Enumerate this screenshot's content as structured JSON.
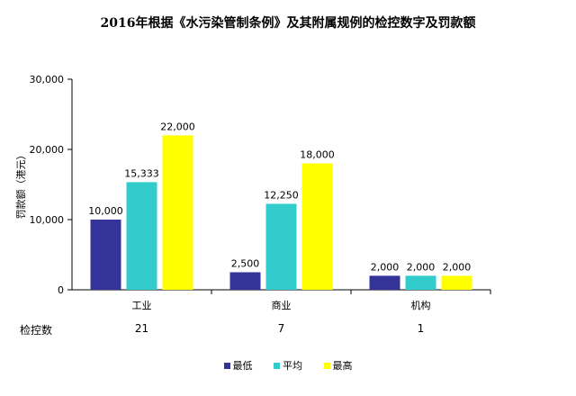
{
  "title": "2016年根据《水污染管制条例》及其附属规例的检控数字及罚款额",
  "chart_data": {
    "type": "bar",
    "categories": [
      "工业",
      "商业",
      "机构"
    ],
    "series": [
      {
        "name": "最低",
        "values": [
          10000,
          2500,
          2000
        ],
        "color": "#333399"
      },
      {
        "name": "平均",
        "values": [
          15333,
          12250,
          2000
        ],
        "color": "#33CCCC"
      },
      {
        "name": "最高",
        "values": [
          22000,
          18000,
          2000
        ],
        "color": "#FFFF00"
      }
    ],
    "value_labels": [
      [
        "10,000",
        "2,500",
        "2,000"
      ],
      [
        "15,333",
        "12,250",
        "2,000"
      ],
      [
        "22,000",
        "18,000",
        "2,000"
      ]
    ],
    "ylabel": "罚款额（港元）",
    "ylim": [
      0,
      30000
    ],
    "yticks": [
      0,
      10000,
      20000,
      30000
    ],
    "ytick_labels": [
      "0",
      "10,000",
      "20,000",
      "30,000"
    ],
    "legend_position": "bottom",
    "grid": false
  },
  "prosecutions": {
    "label": "检控数",
    "counts": [
      "21",
      "7",
      "1"
    ]
  }
}
